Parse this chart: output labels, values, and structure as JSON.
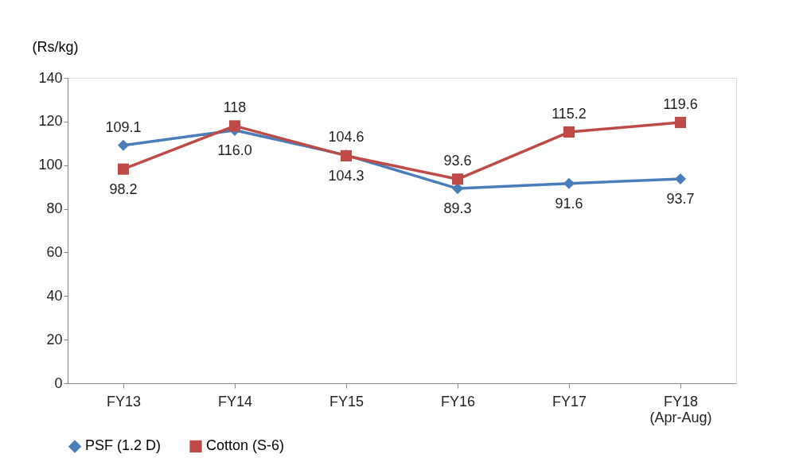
{
  "chart_data": {
    "type": "line",
    "ylabel": "(Rs/kg)",
    "categories": [
      "FY13",
      "FY14",
      "FY15",
      "FY16",
      "FY17",
      "FY18 (Apr-Aug)"
    ],
    "series": [
      {
        "name": "PSF (1.2 D)",
        "color": "#4a7ebb",
        "marker": "diamond",
        "values": [
          109.1,
          116.0,
          104.6,
          89.3,
          91.6,
          93.7
        ],
        "value_labels": [
          "109.1",
          "116.0",
          "104.6",
          "89.3",
          "91.6",
          "93.7"
        ]
      },
      {
        "name": "Cotton (S-6)",
        "color": "#be4b48",
        "marker": "square",
        "values": [
          98.2,
          118,
          104.3,
          93.6,
          115.2,
          119.6
        ],
        "value_labels": [
          "98.2",
          "118",
          "104.3",
          "93.6",
          "115.2",
          "119.6"
        ]
      }
    ],
    "ylim": [
      0,
      140
    ],
    "yticks": [
      0,
      20,
      40,
      60,
      80,
      100,
      120,
      140
    ],
    "grid": false,
    "legend": "bottom",
    "line_style": "solid"
  }
}
